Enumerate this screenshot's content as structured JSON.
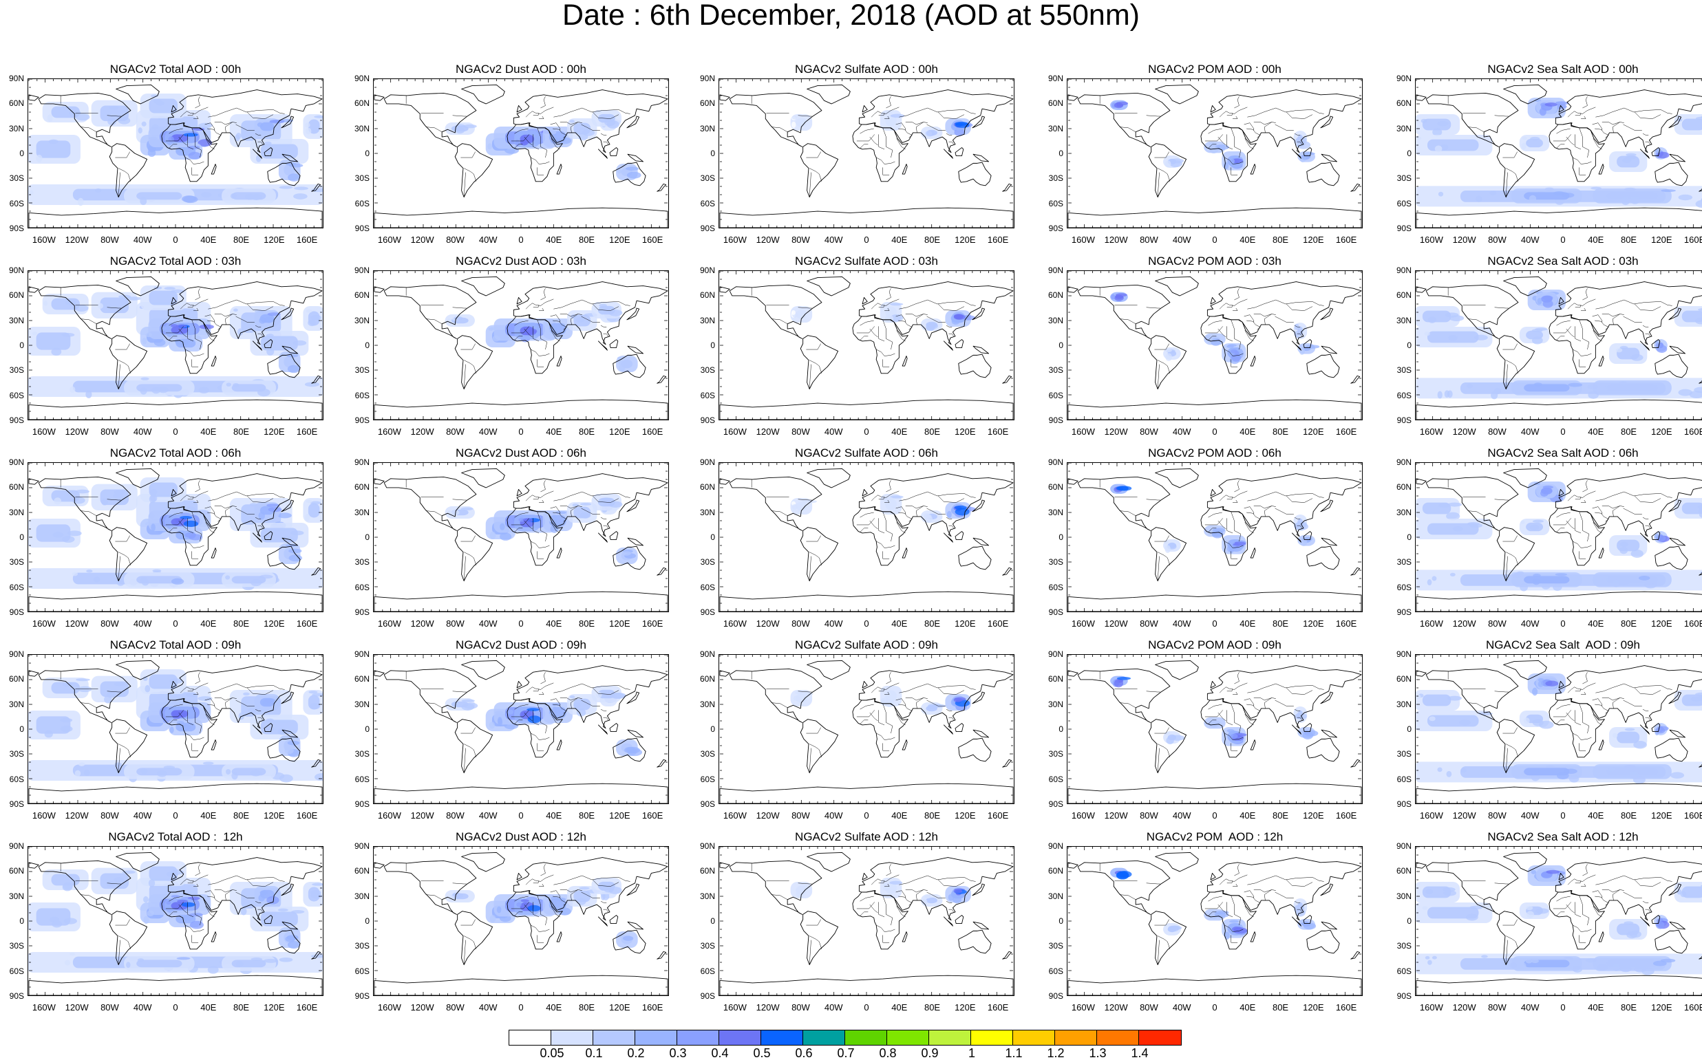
{
  "title": "Date : 6th December, 2018 (AOD at 550nm)",
  "panels": [
    [
      "NGACv2 Total AOD : 00h",
      "NGACv2 Dust AOD : 00h",
      "NGACv2 Sulfate AOD : 00h",
      "NGACv2 POM AOD : 00h",
      "NGACv2 Sea Salt AOD : 00h"
    ],
    [
      "NGACv2 Total AOD : 03h",
      "NGACv2 Dust AOD : 03h",
      "NGACv2 Sulfate AOD : 03h",
      "NGACv2 POM AOD : 03h",
      "NGACv2 Sea Salt AOD : 03h"
    ],
    [
      "NGACv2 Total AOD : 06h",
      "NGACv2 Dust AOD : 06h",
      "NGACv2 Sulfate AOD : 06h",
      "NGACv2 POM AOD : 06h",
      "NGACv2 Sea Salt AOD : 06h"
    ],
    [
      "NGACv2 Total AOD : 09h",
      "NGACv2 Dust AOD : 09h",
      "NGACv2 Sulfate AOD : 09h",
      "NGACv2 POM AOD : 09h",
      "NGACv2 Sea Salt  AOD : 09h"
    ],
    [
      "NGACv2 Total AOD :  12h",
      "NGACv2 Dust AOD : 12h",
      "NGACv2 Sulfate AOD : 12h",
      "NGACv2 POM  AOD : 12h",
      "NGACv2 Sea Salt AOD : 12h"
    ]
  ],
  "lat_labels": [
    "90N",
    "60N",
    "30N",
    "0",
    "30S",
    "60S",
    "90S"
  ],
  "lon_labels": [
    "160W",
    "120W",
    "80W",
    "40W",
    "0",
    "40E",
    "80E",
    "120E",
    "160E"
  ],
  "colorbar": {
    "levels": [
      "0.05",
      "0.1",
      "0.2",
      "0.3",
      "0.4",
      "0.5",
      "0.6",
      "0.7",
      "0.8",
      "0.9",
      "1",
      "1.1",
      "1.2",
      "1.3",
      "1.4"
    ],
    "colors": [
      "#ffffff",
      "#d6e2ff",
      "#b5c9ff",
      "#99b4ff",
      "#8aa0ff",
      "#6d75f5",
      "#0a64ff",
      "#00a0a0",
      "#5fd400",
      "#7fe600",
      "#bef23c",
      "#ffff00",
      "#ffcd00",
      "#ffa000",
      "#ff7800",
      "#ff2800"
    ]
  }
}
